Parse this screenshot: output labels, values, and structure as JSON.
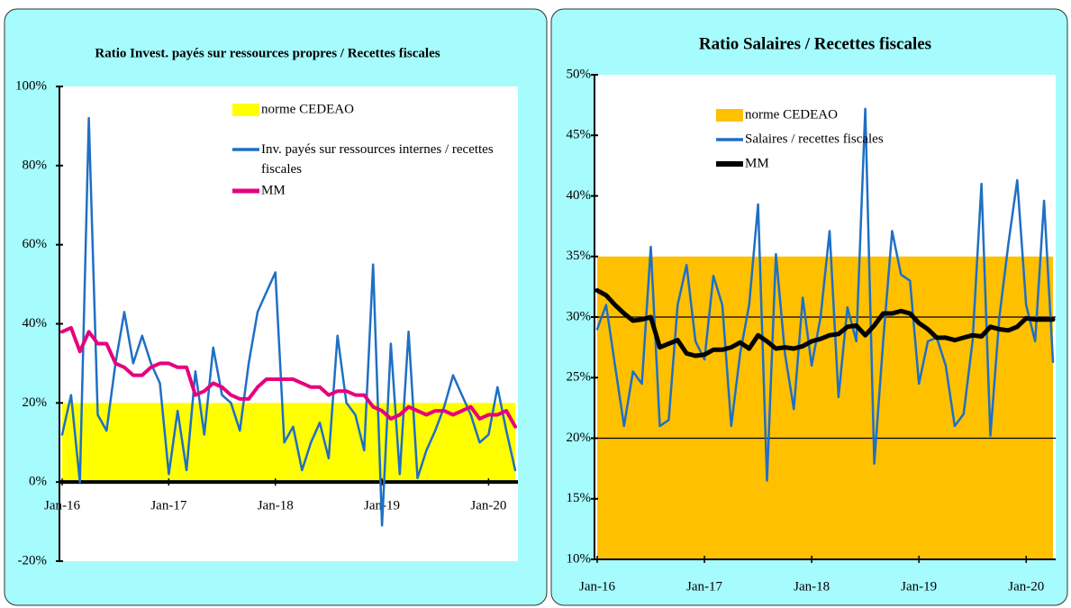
{
  "chart_data": [
    {
      "type": "line",
      "title": "Ratio Invest. payés sur ressources propres / Recettes fiscales",
      "categories": [
        "Jan-16",
        null,
        null,
        null,
        null,
        null,
        null,
        null,
        null,
        null,
        null,
        null,
        "Jan-17",
        null,
        null,
        null,
        null,
        null,
        null,
        null,
        null,
        null,
        null,
        null,
        "Jan-18",
        null,
        null,
        null,
        null,
        null,
        null,
        null,
        null,
        null,
        null,
        null,
        "Jan-19",
        null,
        null,
        null,
        null,
        null,
        null,
        null,
        null,
        null,
        null,
        null,
        "Jan-20",
        null,
        null,
        null
      ],
      "ylim": [
        -20,
        100
      ],
      "yticks": [
        {
          "value": -20,
          "label": "-20%"
        },
        {
          "value": 0,
          "label": "0%"
        },
        {
          "value": 20,
          "label": "20%"
        },
        {
          "value": 40,
          "label": "40%"
        },
        {
          "value": 60,
          "label": "60%"
        },
        {
          "value": 80,
          "label": "80%"
        },
        {
          "value": 100,
          "label": "100%"
        }
      ],
      "band": {
        "name": "norme CEDEAO",
        "color": "#ffff00",
        "range": [
          0,
          20
        ]
      },
      "series": [
        {
          "name": "Inv. payés sur ressources internes / recettes fiscales",
          "color": "#1f6fc5",
          "values": [
            12,
            22,
            0,
            92,
            17,
            13,
            30,
            43,
            30,
            37,
            30,
            25,
            2,
            18,
            3,
            28,
            12,
            34,
            22,
            20,
            13,
            30,
            43,
            48,
            53,
            10,
            14,
            3,
            10,
            15,
            6,
            37,
            20,
            17,
            8,
            55,
            -11,
            35,
            2,
            38,
            1,
            8,
            13,
            19,
            27,
            22,
            17,
            10,
            12,
            24,
            13,
            3
          ]
        },
        {
          "name": "MM",
          "color": "#e6007e",
          "values": [
            38,
            39,
            33,
            38,
            35,
            35,
            30,
            29,
            27,
            27,
            29,
            30,
            30,
            29,
            29,
            22,
            23,
            25,
            24,
            22,
            21,
            21,
            24,
            26,
            26,
            26,
            26,
            25,
            24,
            24,
            22,
            23,
            23,
            22,
            22,
            19,
            18,
            16,
            17,
            19,
            18,
            17,
            18,
            18,
            17,
            18,
            19,
            16,
            17,
            17,
            18,
            14
          ]
        }
      ],
      "legend": "upper center"
    },
    {
      "type": "line",
      "title": "Ratio Salaires / Recettes fiscales",
      "categories": [
        "Jan-16",
        null,
        null,
        null,
        null,
        null,
        null,
        null,
        null,
        null,
        null,
        null,
        "Jan-17",
        null,
        null,
        null,
        null,
        null,
        null,
        null,
        null,
        null,
        null,
        null,
        "Jan-18",
        null,
        null,
        null,
        null,
        null,
        null,
        null,
        null,
        null,
        null,
        null,
        "Jan-19",
        null,
        null,
        null,
        null,
        null,
        null,
        null,
        null,
        null,
        null,
        null,
        "Jan-20",
        null,
        null,
        null
      ],
      "ylim": [
        10,
        50
      ],
      "yticks": [
        {
          "value": 10,
          "label": "10%"
        },
        {
          "value": 15,
          "label": "15%"
        },
        {
          "value": 20,
          "label": "20%"
        },
        {
          "value": 25,
          "label": "25%"
        },
        {
          "value": 30,
          "label": "30%"
        },
        {
          "value": 35,
          "label": "35%"
        },
        {
          "value": 40,
          "label": "40%"
        },
        {
          "value": 45,
          "label": "45%"
        },
        {
          "value": 50,
          "label": "50%"
        }
      ],
      "band": {
        "name": "norme CEDEAO",
        "color": "#ffc000",
        "range": [
          10,
          35
        ]
      },
      "reference_lines": [
        20,
        30
      ],
      "series": [
        {
          "name": "Salaires / recettes fiscales",
          "color": "#1f6fc5",
          "values": [
            29,
            31,
            26,
            21,
            25.5,
            24.5,
            35.8,
            21,
            21.5,
            31,
            34.3,
            28,
            26.5,
            33.4,
            31,
            21,
            27,
            31,
            39.3,
            16.5,
            35.2,
            27,
            22.4,
            31.6,
            26,
            30,
            37.1,
            23.4,
            30.8,
            28,
            47.2,
            17.9,
            28,
            37.1,
            33.5,
            33,
            24.5,
            28,
            28.3,
            26,
            21,
            22,
            28,
            41,
            20.2,
            30,
            36,
            41.3,
            31,
            28,
            39.6,
            26.3
          ]
        },
        {
          "name": "MM",
          "color": "#000000",
          "values": [
            32.2,
            31.8,
            31,
            30.3,
            29.7,
            29.8,
            30,
            27.5,
            27.8,
            28.1,
            27,
            26.8,
            26.9,
            27.3,
            27.3,
            27.5,
            27.9,
            27.4,
            28.5,
            28,
            27.4,
            27.5,
            27.4,
            27.6,
            28,
            28.2,
            28.5,
            28.6,
            29.2,
            29.3,
            28.5,
            29.3,
            30.3,
            30.3,
            30.5,
            30.3,
            29.5,
            29,
            28.3,
            28.3,
            28.1,
            28.3,
            28.5,
            28.4,
            29.2,
            29,
            28.9,
            29.2,
            29.9,
            29.8,
            29.8,
            29.8
          ]
        }
      ],
      "legend": "upper center"
    }
  ]
}
